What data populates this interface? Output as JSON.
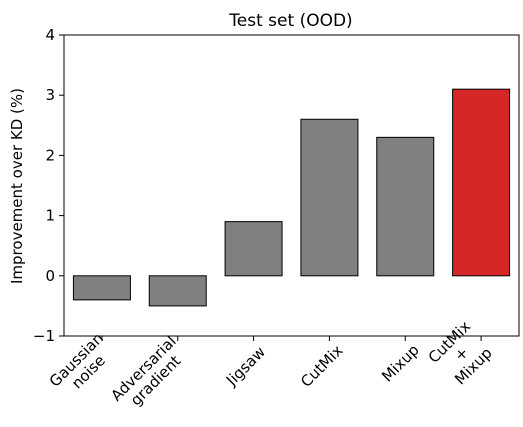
{
  "chart_data": {
    "type": "bar",
    "title": "Test set (OOD)",
    "xlabel": "",
    "ylabel": "Improvement over KD (%)",
    "ylim": [
      -1,
      4
    ],
    "yticks": [
      -1,
      0,
      1,
      2,
      3,
      4
    ],
    "ytick_labels": [
      "−1",
      "0",
      "1",
      "2",
      "3",
      "4"
    ],
    "categories": [
      "Gaussian\nnoise",
      "Adversarial\ngradient",
      "Jigsaw",
      "CutMix",
      "Mixup",
      "CutMix\n+\nMixup"
    ],
    "values": [
      -0.4,
      -0.5,
      0.9,
      2.6,
      2.3,
      3.1
    ],
    "colors": [
      "#808080",
      "#808080",
      "#808080",
      "#808080",
      "#808080",
      "#d62728"
    ],
    "grid": false
  }
}
